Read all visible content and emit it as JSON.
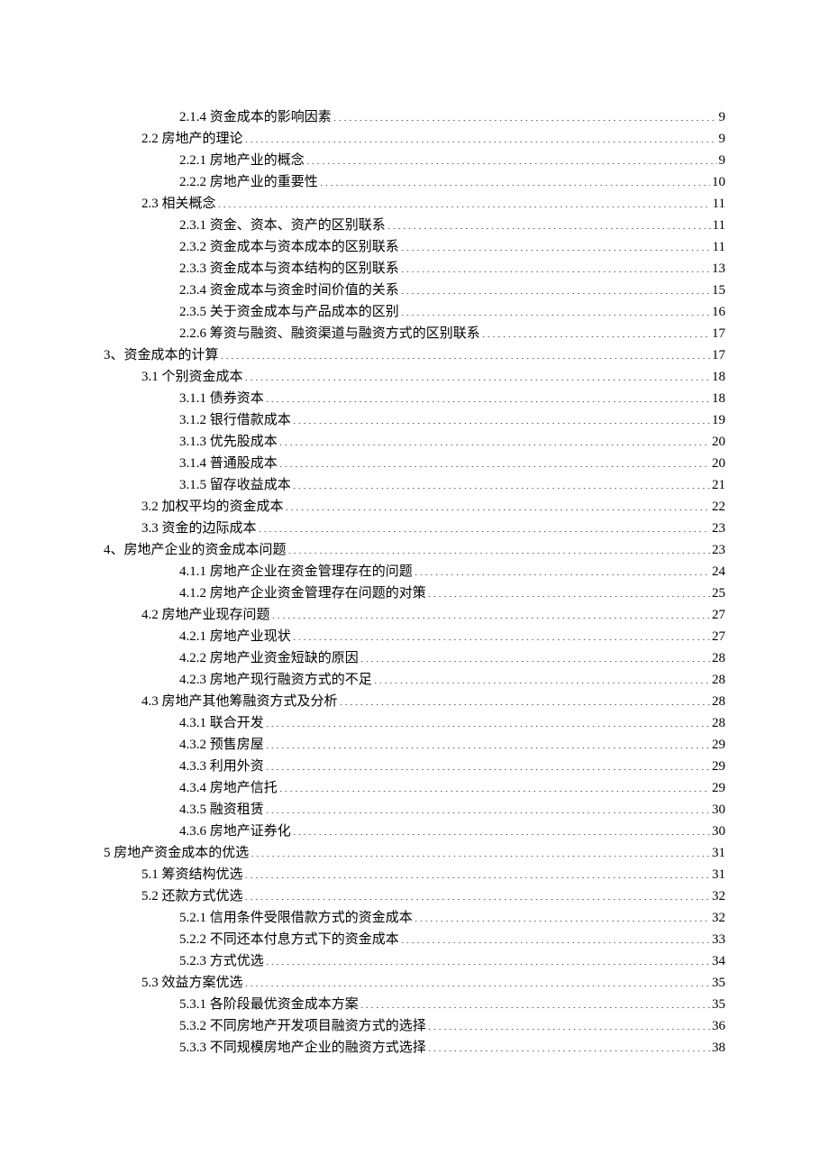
{
  "toc": [
    {
      "indent": 2,
      "label": "2.1.4 资金成本的影响因素",
      "page": "9"
    },
    {
      "indent": 1,
      "label": "2.2 房地产的理论",
      "page": "9"
    },
    {
      "indent": 2,
      "label": "2.2.1 房地产业的概念",
      "page": "9"
    },
    {
      "indent": 2,
      "label": "2.2.2 房地产业的重要性",
      "page": "10"
    },
    {
      "indent": 1,
      "label": "2.3  相关概念",
      "page": "11"
    },
    {
      "indent": 2,
      "label": "2.3.1 资金、资本、资产的区别联系",
      "page": "11"
    },
    {
      "indent": 2,
      "label": "2.3.2 资金成本与资本成本的区别联系",
      "page": "11"
    },
    {
      "indent": 2,
      "label": "2.3.3  资金成本与资本结构的区别联系",
      "page": "13"
    },
    {
      "indent": 2,
      "label": "2.3.4 资金成本与资金时间价值的关系",
      "page": "15"
    },
    {
      "indent": 2,
      "label": "2.3.5 关于资金成本与产品成本的区别",
      "page": "16"
    },
    {
      "indent": 2,
      "label": "2.2.6 筹资与融资、融资渠道与融资方式的区别联系",
      "page": "17"
    },
    {
      "indent": 0,
      "label": "3、资金成本的计算",
      "page": "17"
    },
    {
      "indent": 1,
      "label": "3.1 个别资金成本",
      "page": "18"
    },
    {
      "indent": 2,
      "label": "3.1.1 债券资本",
      "page": "18"
    },
    {
      "indent": 2,
      "label": "3.1.2 银行借款成本",
      "page": "19"
    },
    {
      "indent": 2,
      "label": "3.1.3 优先股成本",
      "page": "20"
    },
    {
      "indent": 2,
      "label": "3.1.4 普通股成本",
      "page": "20"
    },
    {
      "indent": 2,
      "label": "3.1.5 留存收益成本",
      "page": "21"
    },
    {
      "indent": 1,
      "label": "3.2 加权平均的资金成本",
      "page": "22"
    },
    {
      "indent": 1,
      "label": "3.3 资金的边际成本",
      "page": "23"
    },
    {
      "indent": 0,
      "label": "4、房地产企业的资金成本问题",
      "page": "23"
    },
    {
      "indent": 2,
      "label": "4.1.1 房地产企业在资金管理存在的问题",
      "page": "24"
    },
    {
      "indent": 2,
      "label": "4.1.2 房地产企业资金管理存在问题的对策",
      "page": "25"
    },
    {
      "indent": 1,
      "label": "4.2 房地产业现存问题",
      "page": "27"
    },
    {
      "indent": 2,
      "label": "4.2.1 房地产业现状",
      "page": "27"
    },
    {
      "indent": 2,
      "label": "4.2.2 房地产业资金短缺的原因",
      "page": "28"
    },
    {
      "indent": 2,
      "label": "4.2.3 房地产现行融资方式的不足",
      "page": "28"
    },
    {
      "indent": 1,
      "label": "4.3 房地产其他筹融资方式及分析",
      "page": "28"
    },
    {
      "indent": 2,
      "label": "4.3.1  联合开发",
      "page": "28"
    },
    {
      "indent": 2,
      "label": "4.3.2 预售房屋",
      "page": "29"
    },
    {
      "indent": 2,
      "label": "4.3.3 利用外资",
      "page": "29"
    },
    {
      "indent": 2,
      "label": "4.3.4 房地产信托",
      "page": "29"
    },
    {
      "indent": 2,
      "label": "4.3.5 融资租赁",
      "page": "30"
    },
    {
      "indent": 2,
      "label": "4.3.6 房地产证券化",
      "page": "30"
    },
    {
      "indent": 0,
      "label": "5 房地产资金成本的优选",
      "page": "31"
    },
    {
      "indent": 1,
      "label": "5.1 筹资结构优选",
      "page": "31"
    },
    {
      "indent": 1,
      "label": "5.2 还款方式优选",
      "page": "32"
    },
    {
      "indent": 2,
      "label": "5.2.1 信用条件受限借款方式的资金成本",
      "page": "32"
    },
    {
      "indent": 2,
      "label": "5.2.2 不同还本付息方式下的资金成本",
      "page": "33"
    },
    {
      "indent": 2,
      "label": "5.2.3 方式优选",
      "page": "34"
    },
    {
      "indent": 1,
      "label": "5.3 效益方案优选",
      "page": "35"
    },
    {
      "indent": 2,
      "label": "5.3.1 各阶段最优资金成本方案",
      "page": "35"
    },
    {
      "indent": 2,
      "label": "5.3.2 不同房地产开发项目融资方式的选择",
      "page": "36"
    },
    {
      "indent": 2,
      "label": "5.3.3 不同规模房地产企业的融资方式选择",
      "page": "38"
    }
  ]
}
